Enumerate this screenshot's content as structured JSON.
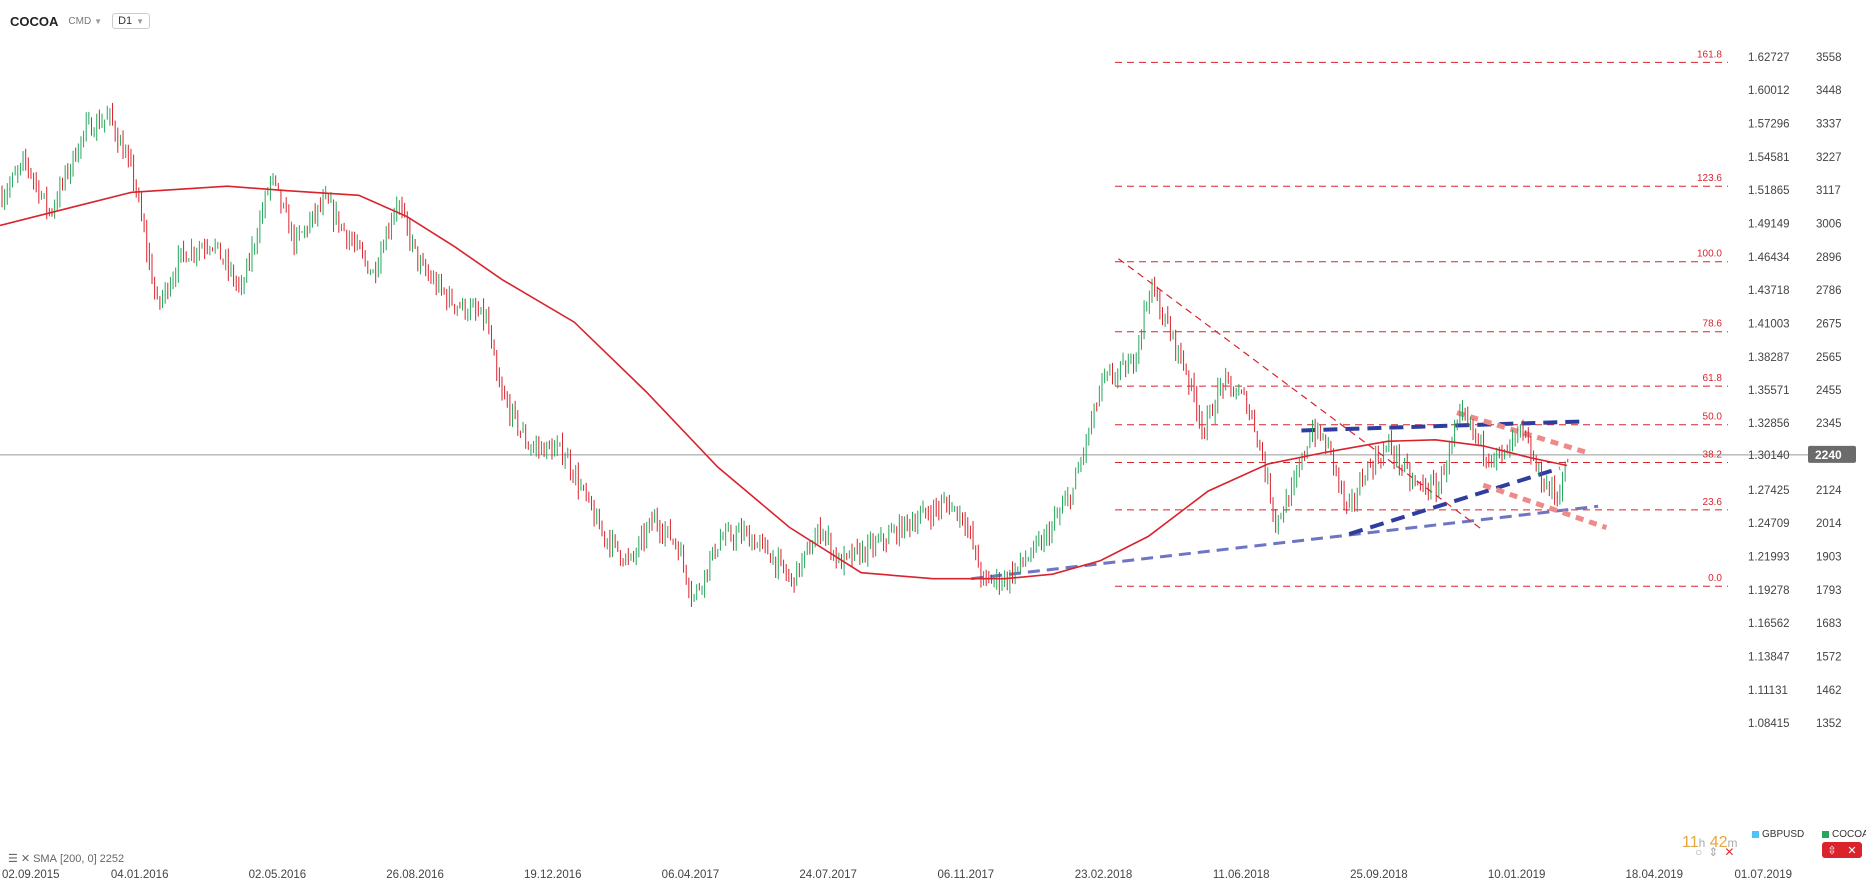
{
  "header": {
    "symbol": "COCOA",
    "market_badge": "CMD",
    "timeframe": "D1",
    "dropdown_icon": "chevron-down-icon"
  },
  "indicator": {
    "label": "SMA",
    "params": "[200, 0]",
    "value": "2252"
  },
  "timer": {
    "hours": "11",
    "h_unit": "h",
    "minutes": "42",
    "m_unit": "m"
  },
  "legend": [
    {
      "name": "GBPUSD",
      "color": "#4fc3f7"
    },
    {
      "name": "COCOA",
      "color": "#26a65b"
    }
  ],
  "colors": {
    "bull": "#26a65b",
    "bear": "#d9232d",
    "sma": "#d9232d",
    "fib": "#d9232d",
    "trend_blue": "#2e3d9e",
    "trend_blue_light": "#6e76c4",
    "trend_red": "#ef8a8a",
    "price_tag": "#6b6b6b"
  },
  "chart_data": {
    "type": "candlestick",
    "symbol": "COCOA",
    "timeframe": "D1",
    "ylim": [
      1318,
      3600
    ],
    "x_tick_labels": [
      "02.09.2015",
      "04.01.2016",
      "02.05.2016",
      "26.08.2016",
      "19.12.2016",
      "06.04.2017",
      "24.07.2017",
      "06.11.2017",
      "23.02.2018",
      "11.06.2018",
      "25.09.2018",
      "10.01.2019",
      "18.04.2019",
      "01.07.2019"
    ],
    "y_ticks_right": [
      {
        "value": 3558,
        "gbpusd": "1.62727"
      },
      {
        "value": 3448,
        "gbpusd": "1.60012"
      },
      {
        "value": 3337,
        "gbpusd": "1.57296"
      },
      {
        "value": 3227,
        "gbpusd": "1.54581"
      },
      {
        "value": 3117,
        "gbpusd": "1.51865"
      },
      {
        "value": 3006,
        "gbpusd": "1.49149"
      },
      {
        "value": 2896,
        "gbpusd": "1.46434"
      },
      {
        "value": 2786,
        "gbpusd": "1.43718"
      },
      {
        "value": 2675,
        "gbpusd": "1.41003"
      },
      {
        "value": 2565,
        "gbpusd": "1.38287"
      },
      {
        "value": 2455,
        "gbpusd": "1.35571"
      },
      {
        "value": 2345,
        "gbpusd": "1.32856"
      },
      {
        "value": 2240,
        "gbpusd": "1.30140"
      },
      {
        "value": 2124,
        "gbpusd": "1.27425"
      },
      {
        "value": 2014,
        "gbpusd": "1.24709"
      },
      {
        "value": 1903,
        "gbpusd": "1.21993"
      },
      {
        "value": 1793,
        "gbpusd": "1.19278"
      },
      {
        "value": 1683,
        "gbpusd": "1.16562"
      },
      {
        "value": 1572,
        "gbpusd": "1.13847"
      },
      {
        "value": 1462,
        "gbpusd": "1.11131"
      },
      {
        "value": 1352,
        "gbpusd": "1.08415"
      }
    ],
    "current_price": 2240,
    "fibonacci": [
      {
        "level": "161.8",
        "price": 3540
      },
      {
        "level": "123.6",
        "price": 3130
      },
      {
        "level": "100.0",
        "price": 2880
      },
      {
        "level": "78.6",
        "price": 2648
      },
      {
        "level": "61.8",
        "price": 2468
      },
      {
        "level": "50.0",
        "price": 2340
      },
      {
        "level": "38.2",
        "price": 2215
      },
      {
        "level": "23.6",
        "price": 2058
      },
      {
        "level": "0.0",
        "price": 1805
      }
    ],
    "sma_200": [
      [
        0,
        3000
      ],
      [
        60,
        3060
      ],
      [
        110,
        3110
      ],
      [
        190,
        3130
      ],
      [
        240,
        3115
      ],
      [
        300,
        3100
      ],
      [
        340,
        3030
      ],
      [
        380,
        2930
      ],
      [
        420,
        2820
      ],
      [
        480,
        2680
      ],
      [
        540,
        2450
      ],
      [
        600,
        2200
      ],
      [
        660,
        2000
      ],
      [
        720,
        1850
      ],
      [
        780,
        1830
      ],
      [
        840,
        1830
      ],
      [
        880,
        1845
      ],
      [
        920,
        1890
      ],
      [
        960,
        1970
      ],
      [
        1010,
        2120
      ],
      [
        1060,
        2210
      ],
      [
        1110,
        2250
      ],
      [
        1160,
        2285
      ],
      [
        1200,
        2290
      ],
      [
        1240,
        2270
      ],
      [
        1280,
        2230
      ],
      [
        1310,
        2205
      ]
    ],
    "price_path": [
      [
        0,
        3100
      ],
      [
        20,
        3210
      ],
      [
        40,
        3040
      ],
      [
        70,
        3320
      ],
      [
        90,
        3360
      ],
      [
        110,
        3160
      ],
      [
        130,
        2730
      ],
      [
        150,
        2900
      ],
      [
        175,
        2950
      ],
      [
        200,
        2780
      ],
      [
        225,
        3160
      ],
      [
        245,
        2940
      ],
      [
        270,
        3080
      ],
      [
        290,
        2960
      ],
      [
        310,
        2840
      ],
      [
        330,
        3080
      ],
      [
        350,
        2860
      ],
      [
        375,
        2750
      ],
      [
        405,
        2690
      ],
      [
        415,
        2460
      ],
      [
        440,
        2270
      ],
      [
        470,
        2250
      ],
      [
        500,
        1990
      ],
      [
        525,
        1880
      ],
      [
        545,
        2030
      ],
      [
        565,
        1940
      ],
      [
        578,
        1765
      ],
      [
        600,
        1960
      ],
      [
        620,
        1980
      ],
      [
        640,
        1920
      ],
      [
        660,
        1820
      ],
      [
        685,
        2000
      ],
      [
        700,
        1880
      ],
      [
        730,
        1940
      ],
      [
        760,
        2020
      ],
      [
        790,
        2080
      ],
      [
        805,
        2030
      ],
      [
        820,
        1820
      ],
      [
        840,
        1830
      ],
      [
        870,
        1950
      ],
      [
        895,
        2120
      ],
      [
        920,
        2480
      ],
      [
        945,
        2540
      ],
      [
        960,
        2800
      ],
      [
        975,
        2660
      ],
      [
        990,
        2520
      ],
      [
        1005,
        2320
      ],
      [
        1020,
        2480
      ],
      [
        1040,
        2420
      ],
      [
        1050,
        2300
      ],
      [
        1065,
        2020
      ],
      [
        1080,
        2130
      ],
      [
        1095,
        2330
      ],
      [
        1110,
        2260
      ],
      [
        1125,
        2040
      ],
      [
        1140,
        2190
      ],
      [
        1160,
        2270
      ],
      [
        1180,
        2140
      ],
      [
        1200,
        2130
      ],
      [
        1220,
        2370
      ],
      [
        1240,
        2250
      ],
      [
        1255,
        2230
      ],
      [
        1270,
        2320
      ],
      [
        1285,
        2170
      ],
      [
        1300,
        2100
      ],
      [
        1310,
        2240
      ]
    ],
    "trendlines": [
      {
        "style": "dashed-blue-light",
        "from": [
          812,
          1830
        ],
        "to": [
          1336,
          2070
        ]
      },
      {
        "style": "dashed-blue",
        "from": [
          1088,
          2321
        ],
        "to": [
          1325,
          2351
        ]
      },
      {
        "style": "dashed-blue",
        "from": [
          1128,
          1978
        ],
        "to": [
          1304,
          2196
        ]
      },
      {
        "style": "dashed-red",
        "from": [
          1218,
          2380
        ],
        "to": [
          1325,
          2250
        ]
      },
      {
        "style": "dashed-red",
        "from": [
          1240,
          2140
        ],
        "to": [
          1343,
          1999
        ]
      },
      {
        "style": "dashed-red-thin",
        "from": [
          935,
          2890
        ],
        "to": [
          1240,
          1990
        ]
      }
    ]
  }
}
